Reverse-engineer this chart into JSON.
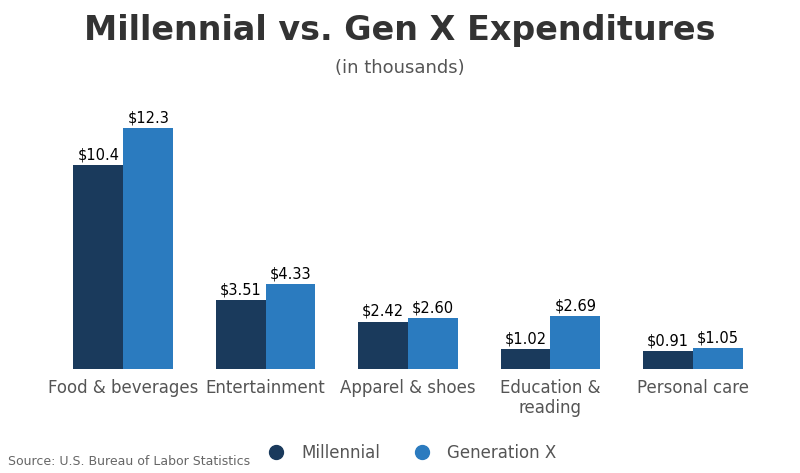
{
  "title": "Millennial vs. Gen X Expenditures",
  "subtitle": "(in thousands)",
  "categories": [
    "Food & beverages",
    "Entertainment",
    "Apparel & shoes",
    "Education &\nreading",
    "Personal care"
  ],
  "millennial_values": [
    10.4,
    3.51,
    2.42,
    1.02,
    0.91
  ],
  "genx_values": [
    12.3,
    4.33,
    2.6,
    2.69,
    1.05
  ],
  "millennial_labels": [
    "$10.4",
    "$3.51",
    "$2.42",
    "$1.02",
    "$0.91"
  ],
  "genx_labels": [
    "$12.3",
    "$4.33",
    "$2.60",
    "$2.69",
    "$1.05"
  ],
  "millennial_color": "#1a3a5c",
  "genx_color": "#2b7bbf",
  "background_color": "#ffffff",
  "title_fontsize": 24,
  "subtitle_fontsize": 13,
  "label_fontsize": 10.5,
  "tick_fontsize": 12,
  "legend_label_millennial": "Millennial",
  "legend_label_genx": "Generation X",
  "source_text": "Source: U.S. Bureau of Labor Statistics",
  "ylim": [
    0,
    14.5
  ],
  "bar_width": 0.35
}
